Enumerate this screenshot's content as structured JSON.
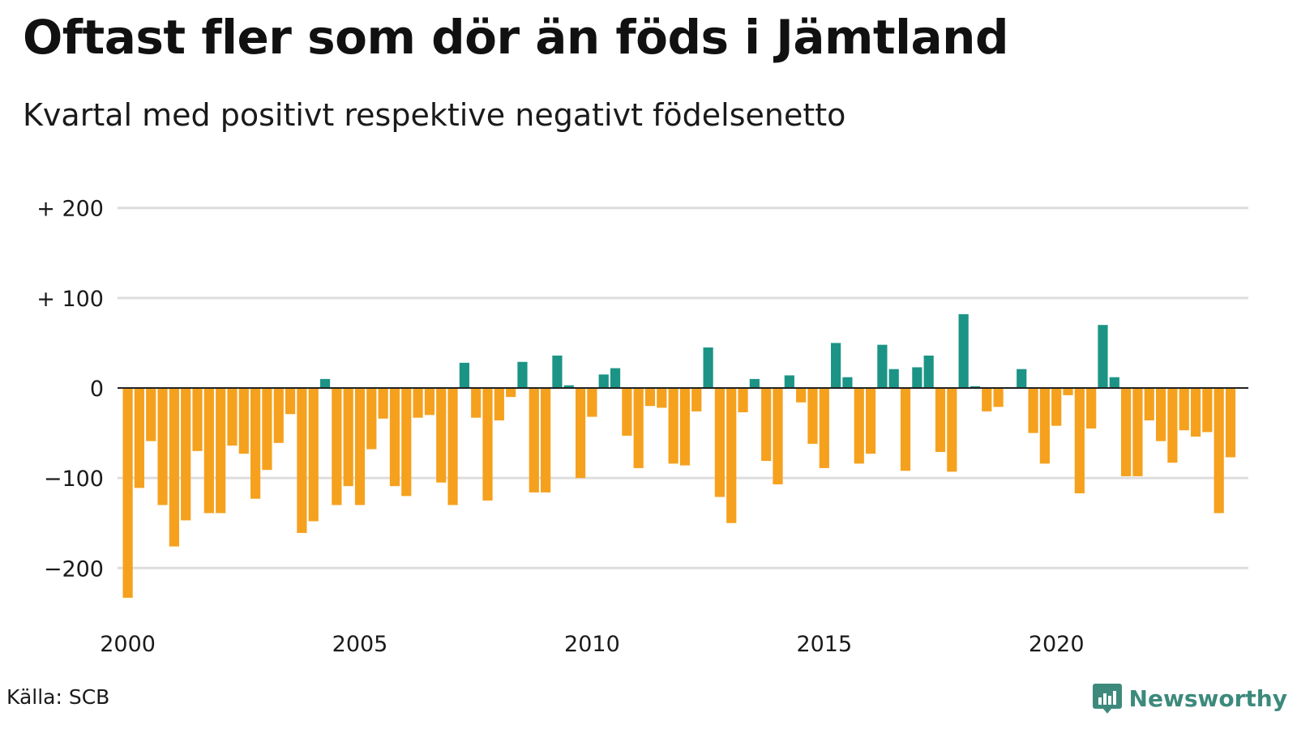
{
  "header": {
    "title": "Oftast fler som dör än föds i Jämtland",
    "subtitle": "Kvartal med positivt respektive negativt födelsenetto"
  },
  "footer": {
    "source": "Källa: SCB",
    "brand": "Newsworthy"
  },
  "colors": {
    "positive": "#1b9486",
    "negative": "#f5a11e",
    "grid": "#dddddd",
    "zero_line": "#222222",
    "brand": "#3d8a7c"
  },
  "chart_data": {
    "type": "bar",
    "title": "Oftast fler som dör än föds i Jämtland",
    "subtitle": "Kvartal med positivt respektive negativt födelsenetto",
    "ylim": [
      -250,
      210
    ],
    "yticks": [
      {
        "value": 200,
        "label": "+ 200"
      },
      {
        "value": 100,
        "label": "+ 100"
      },
      {
        "value": 0,
        "label": "0"
      },
      {
        "value": -100,
        "label": "−100"
      },
      {
        "value": -200,
        "label": "−200"
      }
    ],
    "xticks": [
      {
        "index": 0,
        "label": "2000"
      },
      {
        "index": 20,
        "label": "2005"
      },
      {
        "index": 40,
        "label": "2010"
      },
      {
        "index": 60,
        "label": "2015"
      },
      {
        "index": 80,
        "label": "2020"
      }
    ],
    "grid": true,
    "start": "2000 Q1",
    "values": [
      -233,
      -111,
      -59,
      -130,
      -176,
      -147,
      -70,
      -139,
      -139,
      -64,
      -73,
      -123,
      -91,
      -61,
      -29,
      -161,
      -148,
      10,
      -130,
      -109,
      -130,
      -68,
      -34,
      -109,
      -120,
      -33,
      -30,
      -105,
      -130,
      28,
      -33,
      -125,
      -36,
      -10,
      29,
      -116,
      -116,
      36,
      3,
      -100,
      -32,
      15,
      22,
      -53,
      -89,
      -20,
      -22,
      -84,
      -86,
      -26,
      45,
      -121,
      -150,
      -27,
      10,
      -81,
      -107,
      14,
      -16,
      -62,
      -89,
      50,
      12,
      -84,
      -73,
      48,
      21,
      -92,
      23,
      36,
      -71,
      -93,
      82,
      2,
      -26,
      -21,
      1,
      21,
      -50,
      -84,
      -42,
      -8,
      -117,
      -45,
      70,
      12,
      -98,
      -98,
      -36,
      -59,
      -83,
      -47,
      -54,
      -49,
      -139,
      -77
    ]
  }
}
